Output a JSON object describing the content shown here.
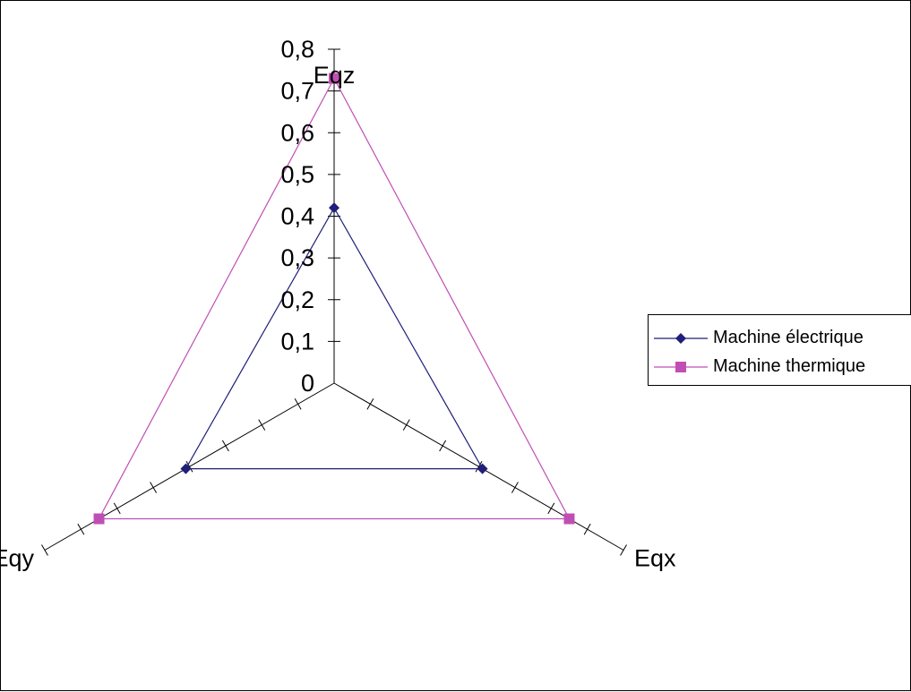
{
  "chart_data": {
    "type": "radar",
    "axes": [
      "Eqz",
      "Eqx",
      "Eqy"
    ],
    "scale": {
      "min": 0,
      "max": 0.8,
      "step": 0.1,
      "tick_labels": [
        "0",
        "0,1",
        "0,2",
        "0,3",
        "0,4",
        "0,5",
        "0,6",
        "0,7",
        "0,8"
      ]
    },
    "series": [
      {
        "name": "Machine électrique",
        "color": "#1f1f7a",
        "marker": "diamond",
        "values": [
          0.42,
          0.41,
          0.41
        ]
      },
      {
        "name": "Machine thermique",
        "color": "#c04fb4",
        "marker": "square",
        "values": [
          0.73,
          0.65,
          0.65
        ]
      }
    ],
    "legend_position": "right"
  }
}
